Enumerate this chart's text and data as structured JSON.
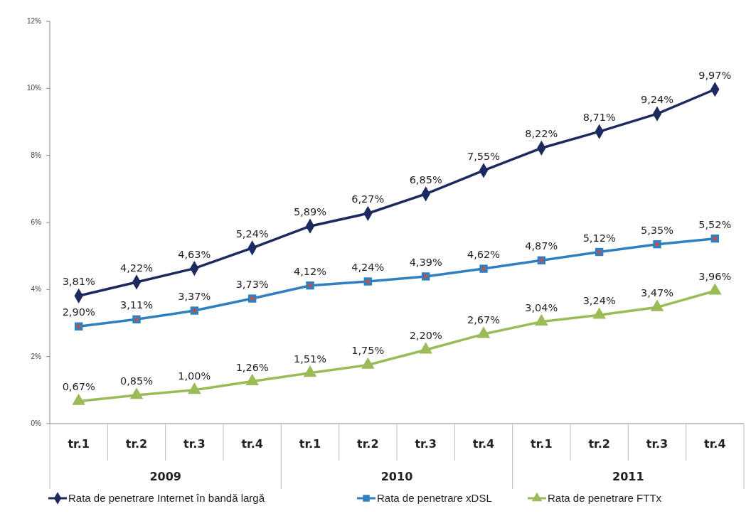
{
  "chart_data": {
    "type": "line",
    "categories": [
      "tr.1",
      "tr.2",
      "tr.3",
      "tr.4",
      "tr.1",
      "tr.2",
      "tr.3",
      "tr.4",
      "tr.1",
      "tr.2",
      "tr.3",
      "tr.4"
    ],
    "annotations": [
      "2009",
      "2010",
      "2011"
    ],
    "series": [
      {
        "name": "Rata de penetrare Internet în bandă largă",
        "color": "#1c2a5e",
        "marker": "diamond",
        "values": [
          3.81,
          4.22,
          4.63,
          5.24,
          5.89,
          6.27,
          6.85,
          7.55,
          8.22,
          8.71,
          9.24,
          9.97
        ],
        "value_labels": [
          "3,81%",
          "4,22%",
          "4,63%",
          "5,24%",
          "5,89%",
          "6,27%",
          "6,85%",
          "7,55%",
          "8,22%",
          "8,71%",
          "9,24%",
          "9,97%"
        ]
      },
      {
        "name": "Rata de penetrare xDSL",
        "color": "#2f7fc1",
        "marker": "square",
        "values": [
          2.9,
          3.11,
          3.37,
          3.73,
          4.12,
          4.24,
          4.39,
          4.62,
          4.87,
          5.12,
          5.35,
          5.52
        ],
        "value_labels": [
          "2,90%",
          "3,11%",
          "3,37%",
          "3,73%",
          "4,12%",
          "4,24%",
          "4,39%",
          "4,62%",
          "4,87%",
          "5,12%",
          "5,35%",
          "5,52%"
        ]
      },
      {
        "name": "Rata de penetrare FTTx",
        "color": "#9bbb59",
        "marker": "triangle",
        "values": [
          0.67,
          0.85,
          1.0,
          1.26,
          1.51,
          1.75,
          2.2,
          2.67,
          3.04,
          3.24,
          3.47,
          3.96
        ],
        "value_labels": [
          "0,67%",
          "0,85%",
          "1,00%",
          "1,26%",
          "1,51%",
          "1,75%",
          "2,20%",
          "2,67%",
          "3,04%",
          "3,24%",
          "3,47%",
          "3,96%"
        ]
      }
    ],
    "ylim": [
      0,
      12
    ],
    "yticks": [
      {
        "value": 0,
        "label": "0%"
      },
      {
        "value": 2,
        "label": "2%"
      },
      {
        "value": 4,
        "label": "4%"
      },
      {
        "value": 6,
        "label": "6%"
      },
      {
        "value": 8,
        "label": "8%"
      },
      {
        "value": 10,
        "label": "10%"
      },
      {
        "value": 12,
        "label": "12%"
      }
    ],
    "legend": "bottom",
    "grid": false
  }
}
